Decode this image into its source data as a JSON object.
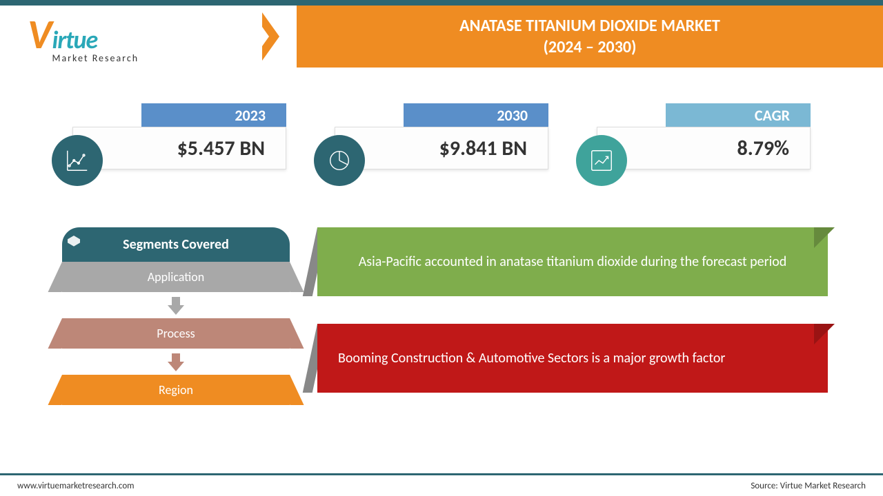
{
  "logo": {
    "v_color": "#ef8c22",
    "main": "irtue",
    "main_color": "#2aa8b8",
    "sub": "Market Research"
  },
  "title": {
    "line1": "ANATASE TITANIUM DIOXIDE MARKET",
    "line2": "(2024 – 2030)",
    "bg_color": "#ef8c22"
  },
  "stats": [
    {
      "label": "2023",
      "value": "$5.457 BN",
      "tab_color": "#5a8fc9",
      "icon_bg": "#2d6672",
      "icon": "line-chart"
    },
    {
      "label": "2030",
      "value": "$9.841 BN",
      "tab_color": "#5a8fc9",
      "icon_bg": "#2d6672",
      "icon": "pie-chart"
    },
    {
      "label": "CAGR",
      "value": "8.79%",
      "tab_color": "#7bb8d4",
      "icon_bg": "#3fa39b",
      "icon": "growth-chart"
    }
  ],
  "segments": {
    "header": "Segments Covered",
    "header_bg": "#2d6672",
    "items": [
      {
        "label": "Application",
        "bg": "#a8a8a8",
        "arrow_color": "#a8a8a8"
      },
      {
        "label": "Process",
        "bg": "#bd8778",
        "arrow_color": "#bd8778"
      },
      {
        "label": "Region",
        "bg": "#ef8c22",
        "arrow_color": null
      }
    ]
  },
  "callouts": [
    {
      "text": "Asia-Pacific accounted in anatase titanium dioxide during the forecast period",
      "bg": "#7fad4c",
      "justify": false
    },
    {
      "text": "Booming Construction & Automotive Sectors is a major growth factor",
      "bg": "#c01818",
      "justify": true
    }
  ],
  "footer": {
    "left": "www.virtuemarketresearch.com",
    "right": "Source: Virtue Market Research",
    "line_color": "#2d6672"
  }
}
